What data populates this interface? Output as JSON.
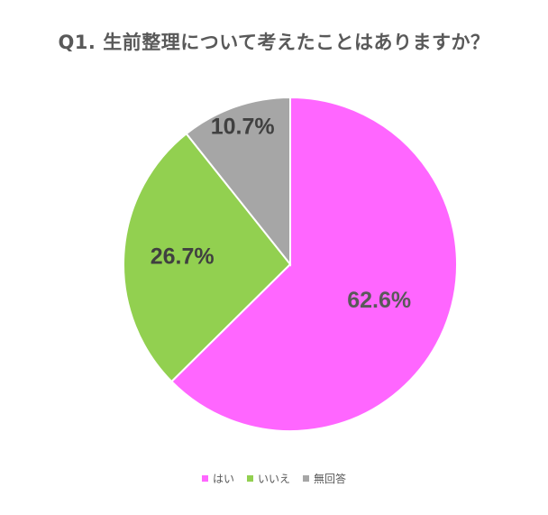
{
  "chart_data": {
    "type": "pie",
    "title": "Q1.  生前整理について考えたことはありますか？",
    "categories": [
      "はい",
      "いいえ",
      "無回答"
    ],
    "values": [
      62.6,
      26.7,
      10.7
    ],
    "labels": [
      "62.6%",
      "26.7%",
      "10.7%"
    ],
    "colors": [
      "#ff66ff",
      "#92d050",
      "#a6a6a6"
    ],
    "label_colors": [
      "#595959",
      "#404040",
      "#404040"
    ],
    "start_angle_deg": 0,
    "direction": "clockwise",
    "legend_position": "bottom"
  }
}
